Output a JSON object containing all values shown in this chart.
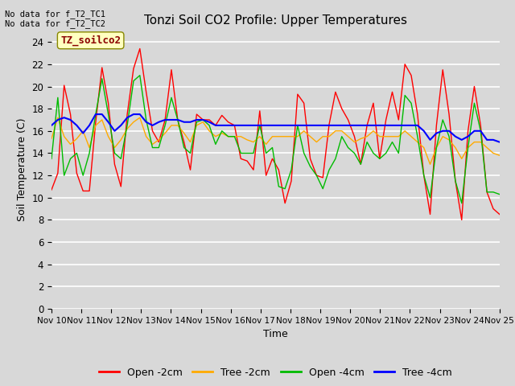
{
  "title": "Tonzi Soil CO2 Profile: Upper Temperatures",
  "ylabel": "Soil Temperature (C)",
  "xlabel": "Time",
  "top_left_text": "No data for f_T2_TC1\nNo data for f_T2_TC2",
  "legend_label": "TZ_soilco2",
  "ylim": [
    0,
    25
  ],
  "yticks": [
    0,
    2,
    4,
    6,
    8,
    10,
    12,
    14,
    16,
    18,
    20,
    22,
    24
  ],
  "xtick_labels": [
    "Nov 10",
    "Nov 11",
    "Nov 12",
    "Nov 13",
    "Nov 14",
    "Nov 15",
    "Nov 16",
    "Nov 17",
    "Nov 18",
    "Nov 19",
    "Nov 20",
    "Nov 21",
    "Nov 22",
    "Nov 23",
    "Nov 24",
    "Nov 25"
  ],
  "bg_color": "#d8d8d8",
  "plot_bg_color": "#d8d8d8",
  "series_colors": {
    "open_2cm": "#ff0000",
    "tree_2cm": "#ffaa00",
    "open_4cm": "#00bb00",
    "tree_4cm": "#0000ff"
  },
  "series_labels": [
    "Open -2cm",
    "Tree -2cm",
    "Open -4cm",
    "Tree -4cm"
  ],
  "open_2cm": [
    10.7,
    12.2,
    20.1,
    17.5,
    12.2,
    10.6,
    10.6,
    16.8,
    21.7,
    18.5,
    13.0,
    11.0,
    17.5,
    21.6,
    23.4,
    19.5,
    16.0,
    15.0,
    17.0,
    21.5,
    17.0,
    15.0,
    12.5,
    17.5,
    17.0,
    17.0,
    16.5,
    17.4,
    16.8,
    16.5,
    13.5,
    13.3,
    12.5,
    17.8,
    12.0,
    13.5,
    12.5,
    9.5,
    11.5,
    19.3,
    18.5,
    13.5,
    12.0,
    11.8,
    16.6,
    19.5,
    18.0,
    17.0,
    15.5,
    13.0,
    16.5,
    18.5,
    13.5,
    17.0,
    19.5,
    17.0,
    22.0,
    21.0,
    17.5,
    12.0,
    8.5,
    16.5,
    21.5,
    17.5,
    11.5,
    8.0,
    16.0,
    20.0,
    16.5,
    10.5,
    9.0,
    8.5
  ],
  "tree_2cm": [
    15.3,
    17.2,
    15.5,
    14.8,
    15.3,
    16.0,
    14.5,
    16.5,
    17.0,
    15.5,
    14.5,
    15.2,
    16.2,
    16.8,
    17.2,
    15.5,
    14.8,
    15.2,
    15.8,
    16.5,
    16.5,
    15.8,
    15.0,
    16.5,
    16.8,
    16.0,
    15.5,
    15.8,
    15.5,
    15.5,
    15.5,
    15.2,
    15.0,
    15.5,
    14.8,
    15.5,
    15.5,
    15.5,
    15.5,
    15.5,
    16.0,
    15.5,
    15.0,
    15.5,
    15.5,
    16.0,
    16.0,
    15.5,
    15.0,
    15.3,
    15.5,
    16.0,
    15.5,
    15.5,
    15.5,
    15.5,
    16.0,
    15.5,
    15.0,
    14.5,
    13.0,
    14.5,
    15.5,
    15.2,
    14.5,
    13.5,
    14.5,
    15.0,
    15.0,
    14.5,
    14.0,
    13.8
  ],
  "open_4cm": [
    13.5,
    19.0,
    12.0,
    13.5,
    14.0,
    12.0,
    14.0,
    17.5,
    20.7,
    17.5,
    14.0,
    13.5,
    16.5,
    20.5,
    21.0,
    17.0,
    14.5,
    14.5,
    16.5,
    19.0,
    17.0,
    14.5,
    14.0,
    16.8,
    17.0,
    16.5,
    14.8,
    16.0,
    15.5,
    15.5,
    14.0,
    14.0,
    14.0,
    16.5,
    14.0,
    14.5,
    11.0,
    10.8,
    12.5,
    16.5,
    14.0,
    12.8,
    12.0,
    10.8,
    12.5,
    13.5,
    15.5,
    14.5,
    14.0,
    13.0,
    15.0,
    14.0,
    13.5,
    14.0,
    15.0,
    14.0,
    19.2,
    18.5,
    15.5,
    12.0,
    10.0,
    14.5,
    17.0,
    15.5,
    11.5,
    9.5,
    14.5,
    18.5,
    16.0,
    10.5,
    10.5,
    10.3
  ],
  "tree_4cm": [
    16.5,
    17.0,
    17.2,
    17.0,
    16.5,
    15.8,
    16.5,
    17.5,
    17.5,
    16.8,
    16.0,
    16.5,
    17.2,
    17.5,
    17.5,
    16.8,
    16.5,
    16.8,
    17.0,
    17.0,
    17.0,
    16.8,
    16.8,
    17.0,
    17.0,
    16.8,
    16.5,
    16.5,
    16.5,
    16.5,
    16.5,
    16.5,
    16.5,
    16.5,
    16.5,
    16.5,
    16.5,
    16.5,
    16.5,
    16.5,
    16.5,
    16.5,
    16.5,
    16.5,
    16.5,
    16.5,
    16.5,
    16.5,
    16.5,
    16.5,
    16.5,
    16.5,
    16.5,
    16.5,
    16.5,
    16.5,
    16.5,
    16.5,
    16.5,
    16.0,
    15.2,
    15.8,
    16.0,
    16.0,
    15.5,
    15.2,
    15.5,
    16.0,
    16.0,
    15.2,
    15.2,
    15.0
  ]
}
